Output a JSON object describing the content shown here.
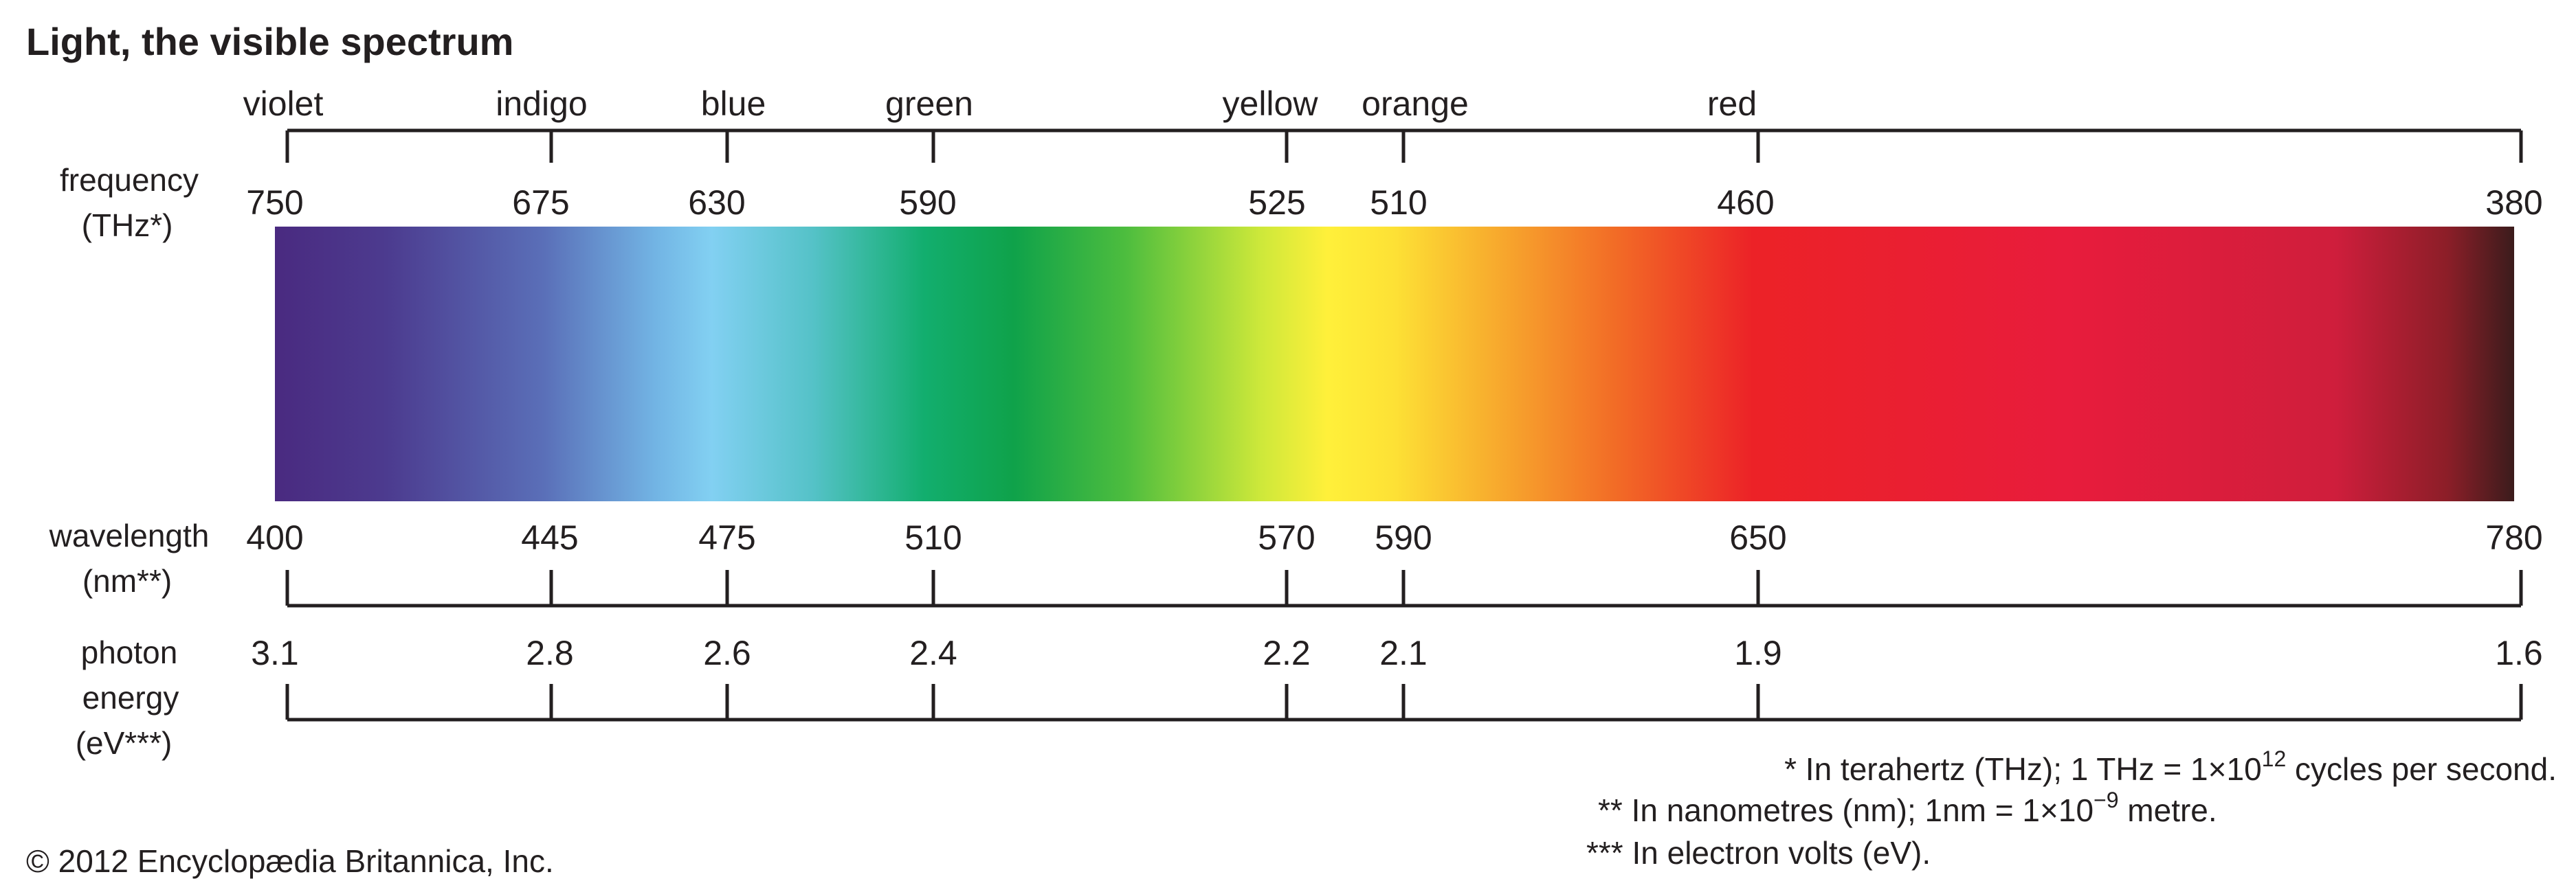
{
  "title": "Light, the visible spectrum",
  "colors": {
    "text": "#231f20",
    "spectrum_stops": [
      {
        "offset": 0.0,
        "color": "#4a2a80"
      },
      {
        "offset": 0.05,
        "color": "#4c3b8f"
      },
      {
        "offset": 0.12,
        "color": "#5a6fb8"
      },
      {
        "offset": 0.17,
        "color": "#72b4e4"
      },
      {
        "offset": 0.195,
        "color": "#82d0f2"
      },
      {
        "offset": 0.24,
        "color": "#55c2c8"
      },
      {
        "offset": 0.29,
        "color": "#12ae6e"
      },
      {
        "offset": 0.33,
        "color": "#0fa24a"
      },
      {
        "offset": 0.38,
        "color": "#4dbd3e"
      },
      {
        "offset": 0.44,
        "color": "#cde83a"
      },
      {
        "offset": 0.47,
        "color": "#fff03a"
      },
      {
        "offset": 0.5,
        "color": "#fde135"
      },
      {
        "offset": 0.54,
        "color": "#f8b12e"
      },
      {
        "offset": 0.6,
        "color": "#f26a26"
      },
      {
        "offset": 0.66,
        "color": "#ec2227"
      },
      {
        "offset": 0.8,
        "color": "#e81c3c"
      },
      {
        "offset": 0.92,
        "color": "#cf1e3c"
      },
      {
        "offset": 0.97,
        "color": "#8c1e28"
      },
      {
        "offset": 1.0,
        "color": "#3b1c1c"
      }
    ]
  },
  "color_names": [
    "violet",
    "indigo",
    "blue",
    "green",
    "yellow",
    "orange",
    "red"
  ],
  "frequency": {
    "label_line1": "frequency",
    "label_line2": "(THz*)",
    "values": [
      "750",
      "675",
      "630",
      "590",
      "525",
      "510",
      "460",
      "380"
    ]
  },
  "wavelength": {
    "label_line1": "wavelength",
    "label_line2": "(nm**)",
    "values": [
      "400",
      "445",
      "475",
      "510",
      "570",
      "590",
      "650",
      "780"
    ]
  },
  "photon_energy": {
    "label_line1": "photon",
    "label_line2": "energy",
    "label_line3": "(eV***)",
    "values": [
      "3.1",
      "2.8",
      "2.6",
      "2.4",
      "2.2",
      "2.1",
      "1.9",
      "1.6"
    ]
  },
  "footnotes": {
    "f1_prefix": "* In terahertz (THz); 1 THz = 1×10",
    "f1_exp": "12",
    "f1_suffix": " cycles per second.",
    "f2_prefix": "** In nanometres (nm); 1nm = 1×10",
    "f2_exp": "−9",
    "f2_suffix": " metre.",
    "f3": "*** In electron volts (eV)."
  },
  "copyright": "© 2012 Encyclopædia Britannica, Inc."
}
